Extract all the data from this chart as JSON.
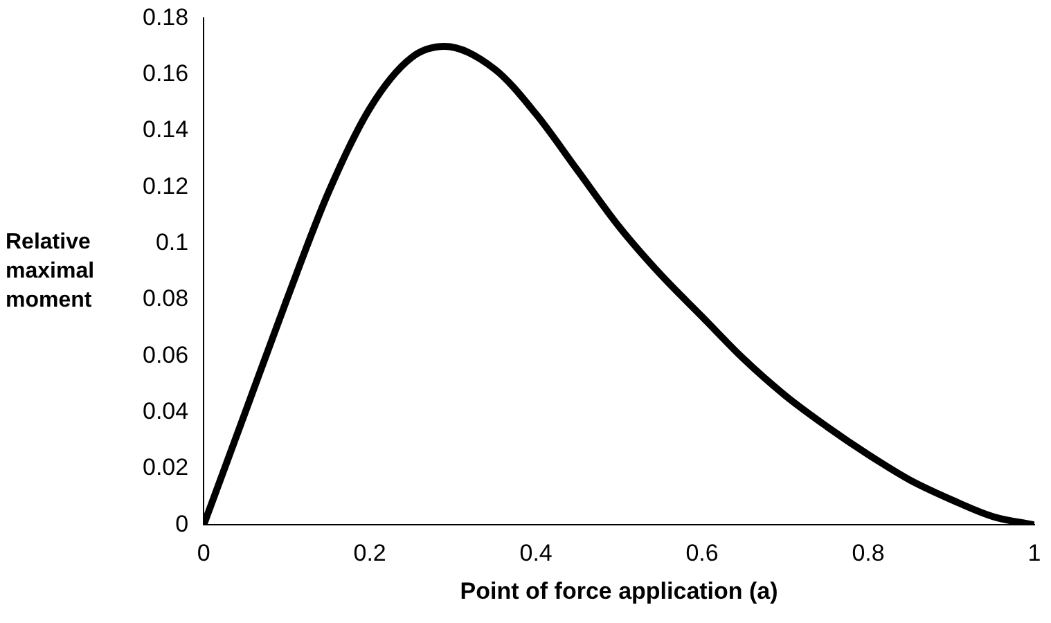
{
  "chart_data": {
    "type": "line",
    "xlabel": "Point of force application (a)",
    "ylabel": "Relative maximal moment",
    "x": [
      0,
      0.05,
      0.1,
      0.15,
      0.2,
      0.25,
      0.29,
      0.35,
      0.4,
      0.45,
      0.5,
      0.55,
      0.6,
      0.65,
      0.7,
      0.75,
      0.8,
      0.85,
      0.9,
      0.95,
      1
    ],
    "series": [
      {
        "color": "#000000",
        "values": [
          0,
          0.04,
          0.08,
          0.118,
          0.148,
          0.166,
          0.17,
          0.162,
          0.146,
          0.126,
          0.106,
          0.089,
          0.074,
          0.059,
          0.046,
          0.035,
          0.025,
          0.016,
          0.009,
          0.003,
          0
        ]
      }
    ],
    "xlim": [
      0,
      1
    ],
    "xticks": [
      0,
      0.2,
      0.4,
      0.6,
      0.8,
      1
    ],
    "ylim": [
      0,
      0.18
    ],
    "yticks": [
      0,
      0.02,
      0.04,
      0.06,
      0.08,
      0.1,
      0.12,
      0.14,
      0.16,
      0.18
    ],
    "grid": false,
    "legend": false,
    "marker": "none",
    "line_style": "solid"
  }
}
